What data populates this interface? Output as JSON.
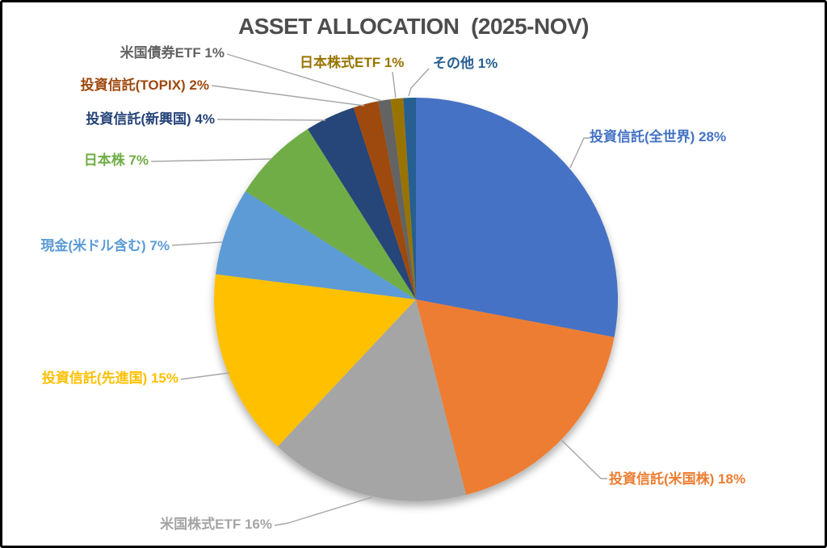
{
  "window": {
    "background": "#FFFFFF",
    "border_color": "#000000"
  },
  "chart_data": {
    "type": "pie",
    "title": "ASSET ALLOCATION  (2025-NOV)",
    "title_color": "#4D4D4D",
    "legend_position": "none",
    "label_style": "outside-end-with-leader-lines",
    "label_format": "{label} {value}%",
    "value_suffix": "%",
    "leader_line_color": "#A6A6A6",
    "start_angle_deg": 0,
    "direction": "clockwise",
    "total": 100,
    "series": [
      {
        "label": "投資信託(全世界)",
        "value": 28,
        "color": "#4472C4"
      },
      {
        "label": "投資信託(米国株)",
        "value": 18,
        "color": "#ED7D31"
      },
      {
        "label": "米国株式ETF",
        "value": 16,
        "color": "#A5A5A5"
      },
      {
        "label": "投資信託(先進国)",
        "value": 15,
        "color": "#FFC000"
      },
      {
        "label": "現金(米ドル含む)",
        "value": 7,
        "color": "#5B9BD5"
      },
      {
        "label": "日本株",
        "value": 7,
        "color": "#70AD47"
      },
      {
        "label": "投資信託(新興国)",
        "value": 4,
        "color": "#264478"
      },
      {
        "label": "投資信託(TOPIX)",
        "value": 2,
        "color": "#9E480E"
      },
      {
        "label": "米国債券ETF",
        "value": 1,
        "color": "#636363"
      },
      {
        "label": "日本株式ETF",
        "value": 1,
        "color": "#997300"
      },
      {
        "label": "その他",
        "value": 1,
        "color": "#255E91"
      }
    ]
  }
}
